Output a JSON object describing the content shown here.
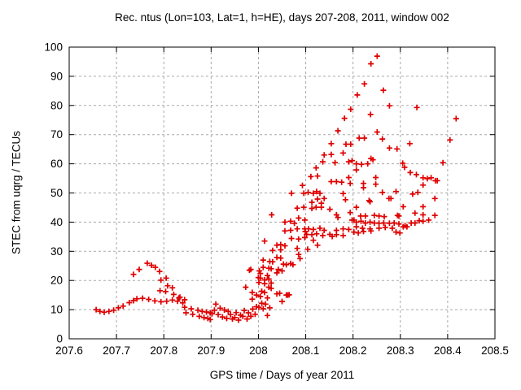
{
  "chart_data": {
    "type": "scatter",
    "title": "Rec. ntus (Lon=103, Lat=1, h=HE), days 207-208, 2011, window 002",
    "xlabel": "GPS time / Days of year 2011",
    "ylabel": "STEC from uqrg / TECUs",
    "xlim": [
      207.6,
      208.5
    ],
    "ylim": [
      0,
      100
    ],
    "xticks": {
      "values": [
        207.6,
        207.7,
        207.8,
        207.9,
        208.0,
        208.1,
        208.2,
        208.3,
        208.4,
        208.5
      ],
      "labels": [
        "207.6",
        "207.7",
        "207.8",
        "207.9",
        "208",
        "208.1",
        "208.2",
        "208.3",
        "208.4",
        "208.5"
      ]
    },
    "yticks": {
      "values": [
        0,
        10,
        20,
        30,
        40,
        50,
        60,
        70,
        80,
        90,
        100
      ],
      "labels": [
        "0",
        "10",
        "20",
        "30",
        "40",
        "50",
        "60",
        "70",
        "80",
        "90",
        "100"
      ]
    },
    "grid": true,
    "legend_position": "none",
    "marker": {
      "shape": "plus",
      "color": "#df0000",
      "size": 7
    },
    "points": [
      [
        207.657,
        10.0
      ],
      [
        207.665,
        9.4
      ],
      [
        207.674,
        9.1
      ],
      [
        207.684,
        9.4
      ],
      [
        207.694,
        9.8
      ],
      [
        207.704,
        10.6
      ],
      [
        207.714,
        11.2
      ],
      [
        207.727,
        12.4
      ],
      [
        207.736,
        13.1
      ],
      [
        207.743,
        13.7
      ],
      [
        207.755,
        13.9
      ],
      [
        207.768,
        13.5
      ],
      [
        207.781,
        13.0
      ],
      [
        207.794,
        12.7
      ],
      [
        207.806,
        12.9
      ],
      [
        207.818,
        13.3
      ],
      [
        207.829,
        12.9
      ],
      [
        207.84,
        12.3
      ],
      [
        207.736,
        22.1
      ],
      [
        207.748,
        23.8
      ],
      [
        207.765,
        25.9
      ],
      [
        207.774,
        25.2
      ],
      [
        207.782,
        24.5
      ],
      [
        207.791,
        23.1
      ],
      [
        207.794,
        20.1
      ],
      [
        207.805,
        20.8
      ],
      [
        207.808,
        18.2
      ],
      [
        207.818,
        17.5
      ],
      [
        207.821,
        15.2
      ],
      [
        207.792,
        16.5
      ],
      [
        207.804,
        16.2
      ],
      [
        207.834,
        14.3
      ],
      [
        207.844,
        13.4
      ],
      [
        207.832,
        14.0
      ],
      [
        207.844,
        10.8
      ],
      [
        207.847,
        8.9
      ],
      [
        207.858,
        10.3
      ],
      [
        207.861,
        8.4
      ],
      [
        207.872,
        9.8
      ],
      [
        207.875,
        7.7
      ],
      [
        207.881,
        9.4
      ],
      [
        207.885,
        7.3
      ],
      [
        207.89,
        9.2
      ],
      [
        207.893,
        7.0
      ],
      [
        207.898,
        8.9
      ],
      [
        207.898,
        6.6
      ],
      [
        207.902,
        8.6
      ],
      [
        207.907,
        9.8
      ],
      [
        207.91,
        11.9
      ],
      [
        207.915,
        8.3
      ],
      [
        207.919,
        10.5
      ],
      [
        207.924,
        7.5
      ],
      [
        207.928,
        9.9
      ],
      [
        207.933,
        7.0
      ],
      [
        207.936,
        9.4
      ],
      [
        207.941,
        8.3
      ],
      [
        207.945,
        6.8
      ],
      [
        207.95,
        7.3
      ],
      [
        207.953,
        9.0
      ],
      [
        207.958,
        6.4
      ],
      [
        207.962,
        8.1
      ],
      [
        207.967,
        7.7
      ],
      [
        207.97,
        9.7
      ],
      [
        207.976,
        6.8
      ],
      [
        207.979,
        8.9
      ],
      [
        207.984,
        7.7
      ],
      [
        207.988,
        10.2
      ],
      [
        207.993,
        8.4
      ],
      [
        207.996,
        11.0
      ],
      [
        207.973,
        17.7
      ],
      [
        207.981,
        23.5
      ],
      [
        207.984,
        23.8
      ],
      [
        207.987,
        15.9
      ],
      [
        207.987,
        13.6
      ],
      [
        207.996,
        15.0
      ],
      [
        208.0,
        21.0
      ],
      [
        208.002,
        23.3
      ],
      [
        208.001,
        10.8
      ],
      [
        208.001,
        19.3
      ],
      [
        208.004,
        14.5
      ],
      [
        208.004,
        20.8
      ],
      [
        208.004,
        22.4
      ],
      [
        208.007,
        12.2
      ],
      [
        208.007,
        16.3
      ],
      [
        208.01,
        10.3
      ],
      [
        208.01,
        24.5
      ],
      [
        208.01,
        27.0
      ],
      [
        208.013,
        15.9
      ],
      [
        208.013,
        18.9
      ],
      [
        208.013,
        20.2
      ],
      [
        208.013,
        33.5
      ],
      [
        208.015,
        11.9
      ],
      [
        208.019,
        8.0
      ],
      [
        208.019,
        14.0
      ],
      [
        208.019,
        21.7
      ],
      [
        208.022,
        17.7
      ],
      [
        208.022,
        20.5
      ],
      [
        208.022,
        24.2
      ],
      [
        208.024,
        10.6
      ],
      [
        208.024,
        26.5
      ],
      [
        208.027,
        17.3
      ],
      [
        208.027,
        19.1
      ],
      [
        208.027,
        24.0
      ],
      [
        208.028,
        42.5
      ],
      [
        208.03,
        26.4
      ],
      [
        208.03,
        30.3
      ],
      [
        208.039,
        15.4
      ],
      [
        208.039,
        22.6
      ],
      [
        208.039,
        27.9
      ],
      [
        208.039,
        32.1
      ],
      [
        208.042,
        23.8
      ],
      [
        208.045,
        15.6
      ],
      [
        208.047,
        27.7
      ],
      [
        208.047,
        30.5
      ],
      [
        208.047,
        32.3
      ],
      [
        208.05,
        12.8
      ],
      [
        208.05,
        23.3
      ],
      [
        208.053,
        25.6
      ],
      [
        208.056,
        31.9
      ],
      [
        208.056,
        37.0
      ],
      [
        208.056,
        40.0
      ],
      [
        208.059,
        15.0
      ],
      [
        208.059,
        25.4
      ],
      [
        208.062,
        15.0
      ],
      [
        208.065,
        15.1
      ],
      [
        208.068,
        25.8
      ],
      [
        208.068,
        37.2
      ],
      [
        208.068,
        40.3
      ],
      [
        208.07,
        34.4
      ],
      [
        208.07,
        49.9
      ],
      [
        208.073,
        25.4
      ],
      [
        208.076,
        39.6
      ],
      [
        208.082,
        31.0
      ],
      [
        208.082,
        37.7
      ],
      [
        208.082,
        44.8
      ],
      [
        208.085,
        28.9
      ],
      [
        208.085,
        34.2
      ],
      [
        208.085,
        41.4
      ],
      [
        208.088,
        27.5
      ],
      [
        208.093,
        52.6
      ],
      [
        208.096,
        45.1
      ],
      [
        208.096,
        49.9
      ],
      [
        208.098,
        34.7
      ],
      [
        208.098,
        37.7
      ],
      [
        208.098,
        40.7
      ],
      [
        208.099,
        36.8
      ],
      [
        208.102,
        35.8
      ],
      [
        208.104,
        30.7
      ],
      [
        208.105,
        50.2
      ],
      [
        208.106,
        37.7
      ],
      [
        208.111,
        55.6
      ],
      [
        208.113,
        35.7
      ],
      [
        208.113,
        44.7
      ],
      [
        208.113,
        46.8
      ],
      [
        208.116,
        33.8
      ],
      [
        208.116,
        37.5
      ],
      [
        208.116,
        49.9
      ],
      [
        208.122,
        45.1
      ],
      [
        208.122,
        58.6
      ],
      [
        208.123,
        36.0
      ],
      [
        208.123,
        50.5
      ],
      [
        208.125,
        32.1
      ],
      [
        208.125,
        47.9
      ],
      [
        208.125,
        55.8
      ],
      [
        208.13,
        37.9
      ],
      [
        208.13,
        49.9
      ],
      [
        208.133,
        45.1
      ],
      [
        208.133,
        46.5
      ],
      [
        208.136,
        35.4
      ],
      [
        208.136,
        60.7
      ],
      [
        208.139,
        37.2
      ],
      [
        208.139,
        48.1
      ],
      [
        208.139,
        63.0
      ],
      [
        208.151,
        35.8
      ],
      [
        208.151,
        44.4
      ],
      [
        208.154,
        53.9
      ],
      [
        208.154,
        63.2
      ],
      [
        208.154,
        66.9
      ],
      [
        208.156,
        35.1
      ],
      [
        208.162,
        60.4
      ],
      [
        208.165,
        35.7
      ],
      [
        208.165,
        37.2
      ],
      [
        208.165,
        42.5
      ],
      [
        208.165,
        53.9
      ],
      [
        208.168,
        41.6
      ],
      [
        208.168,
        71.3
      ],
      [
        208.176,
        53.7
      ],
      [
        208.179,
        35.4
      ],
      [
        208.179,
        37.7
      ],
      [
        208.179,
        49.8
      ],
      [
        208.179,
        63.7
      ],
      [
        208.182,
        75.6
      ],
      [
        208.184,
        47.7
      ],
      [
        208.185,
        66.7
      ],
      [
        208.191,
        37.5
      ],
      [
        208.191,
        55.3
      ],
      [
        208.191,
        60.7
      ],
      [
        208.194,
        43.3
      ],
      [
        208.194,
        53.3
      ],
      [
        208.195,
        66.7
      ],
      [
        208.195,
        78.7
      ],
      [
        208.198,
        40.7
      ],
      [
        208.198,
        61.1
      ],
      [
        208.202,
        36.6
      ],
      [
        208.202,
        40.7
      ],
      [
        208.207,
        38.4
      ],
      [
        208.207,
        40.0
      ],
      [
        208.207,
        45.1
      ],
      [
        208.207,
        57.9
      ],
      [
        208.207,
        60.0
      ],
      [
        208.209,
        83.6
      ],
      [
        208.211,
        36.3
      ],
      [
        208.213,
        68.8
      ],
      [
        208.216,
        42.1
      ],
      [
        208.217,
        40.3
      ],
      [
        208.218,
        59.8
      ],
      [
        208.22,
        37.9
      ],
      [
        208.222,
        36.8
      ],
      [
        208.222,
        51.8
      ],
      [
        208.222,
        53.3
      ],
      [
        208.224,
        68.8
      ],
      [
        208.224,
        87.4
      ],
      [
        208.226,
        39.7
      ],
      [
        208.226,
        42.1
      ],
      [
        208.231,
        60.0
      ],
      [
        208.234,
        47.4
      ],
      [
        208.236,
        40.0
      ],
      [
        208.236,
        47.0
      ],
      [
        208.236,
        37.7
      ],
      [
        208.237,
        76.9
      ],
      [
        208.238,
        37.0
      ],
      [
        208.238,
        61.8
      ],
      [
        208.238,
        94.3
      ],
      [
        208.242,
        61.4
      ],
      [
        208.245,
        39.7
      ],
      [
        208.245,
        42.3
      ],
      [
        208.248,
        53.0
      ],
      [
        208.248,
        55.3
      ],
      [
        208.251,
        70.9
      ],
      [
        208.251,
        96.9
      ],
      [
        208.255,
        37.9
      ],
      [
        208.255,
        39.6
      ],
      [
        208.255,
        42.1
      ],
      [
        208.262,
        50.2
      ],
      [
        208.262,
        68.5
      ],
      [
        208.264,
        85.2
      ],
      [
        208.265,
        39.7
      ],
      [
        208.266,
        41.9
      ],
      [
        208.268,
        38.2
      ],
      [
        208.276,
        48.1
      ],
      [
        208.277,
        39.6
      ],
      [
        208.277,
        65.4
      ],
      [
        208.277,
        79.9
      ],
      [
        208.28,
        48.1
      ],
      [
        208.283,
        37.9
      ],
      [
        208.287,
        39.7
      ],
      [
        208.291,
        36.6
      ],
      [
        208.291,
        50.5
      ],
      [
        208.293,
        65.1
      ],
      [
        208.294,
        42.3
      ],
      [
        208.297,
        39.4
      ],
      [
        208.297,
        42.1
      ],
      [
        208.299,
        36.3
      ],
      [
        208.305,
        60.2
      ],
      [
        208.309,
        58.8
      ],
      [
        208.306,
        38.4
      ],
      [
        208.306,
        45.3
      ],
      [
        208.31,
        38.8
      ],
      [
        208.314,
        38.4
      ],
      [
        208.32,
        66.9
      ],
      [
        208.321,
        57.0
      ],
      [
        208.323,
        39.7
      ],
      [
        208.326,
        49.6
      ],
      [
        208.331,
        39.7
      ],
      [
        208.331,
        43.1
      ],
      [
        208.334,
        56.3
      ],
      [
        208.335,
        79.3
      ],
      [
        208.337,
        50.2
      ],
      [
        208.34,
        40.5
      ],
      [
        208.348,
        40.3
      ],
      [
        208.348,
        42.5
      ],
      [
        208.348,
        45.3
      ],
      [
        208.348,
        52.7
      ],
      [
        208.348,
        55.2
      ],
      [
        208.357,
        54.9
      ],
      [
        208.36,
        40.7
      ],
      [
        208.365,
        55.2
      ],
      [
        208.373,
        42.3
      ],
      [
        208.373,
        48.1
      ],
      [
        208.374,
        54.2
      ],
      [
        208.378,
        54.2
      ],
      [
        208.39,
        60.4
      ],
      [
        208.405,
        68.2
      ],
      [
        208.418,
        75.5
      ]
    ]
  }
}
